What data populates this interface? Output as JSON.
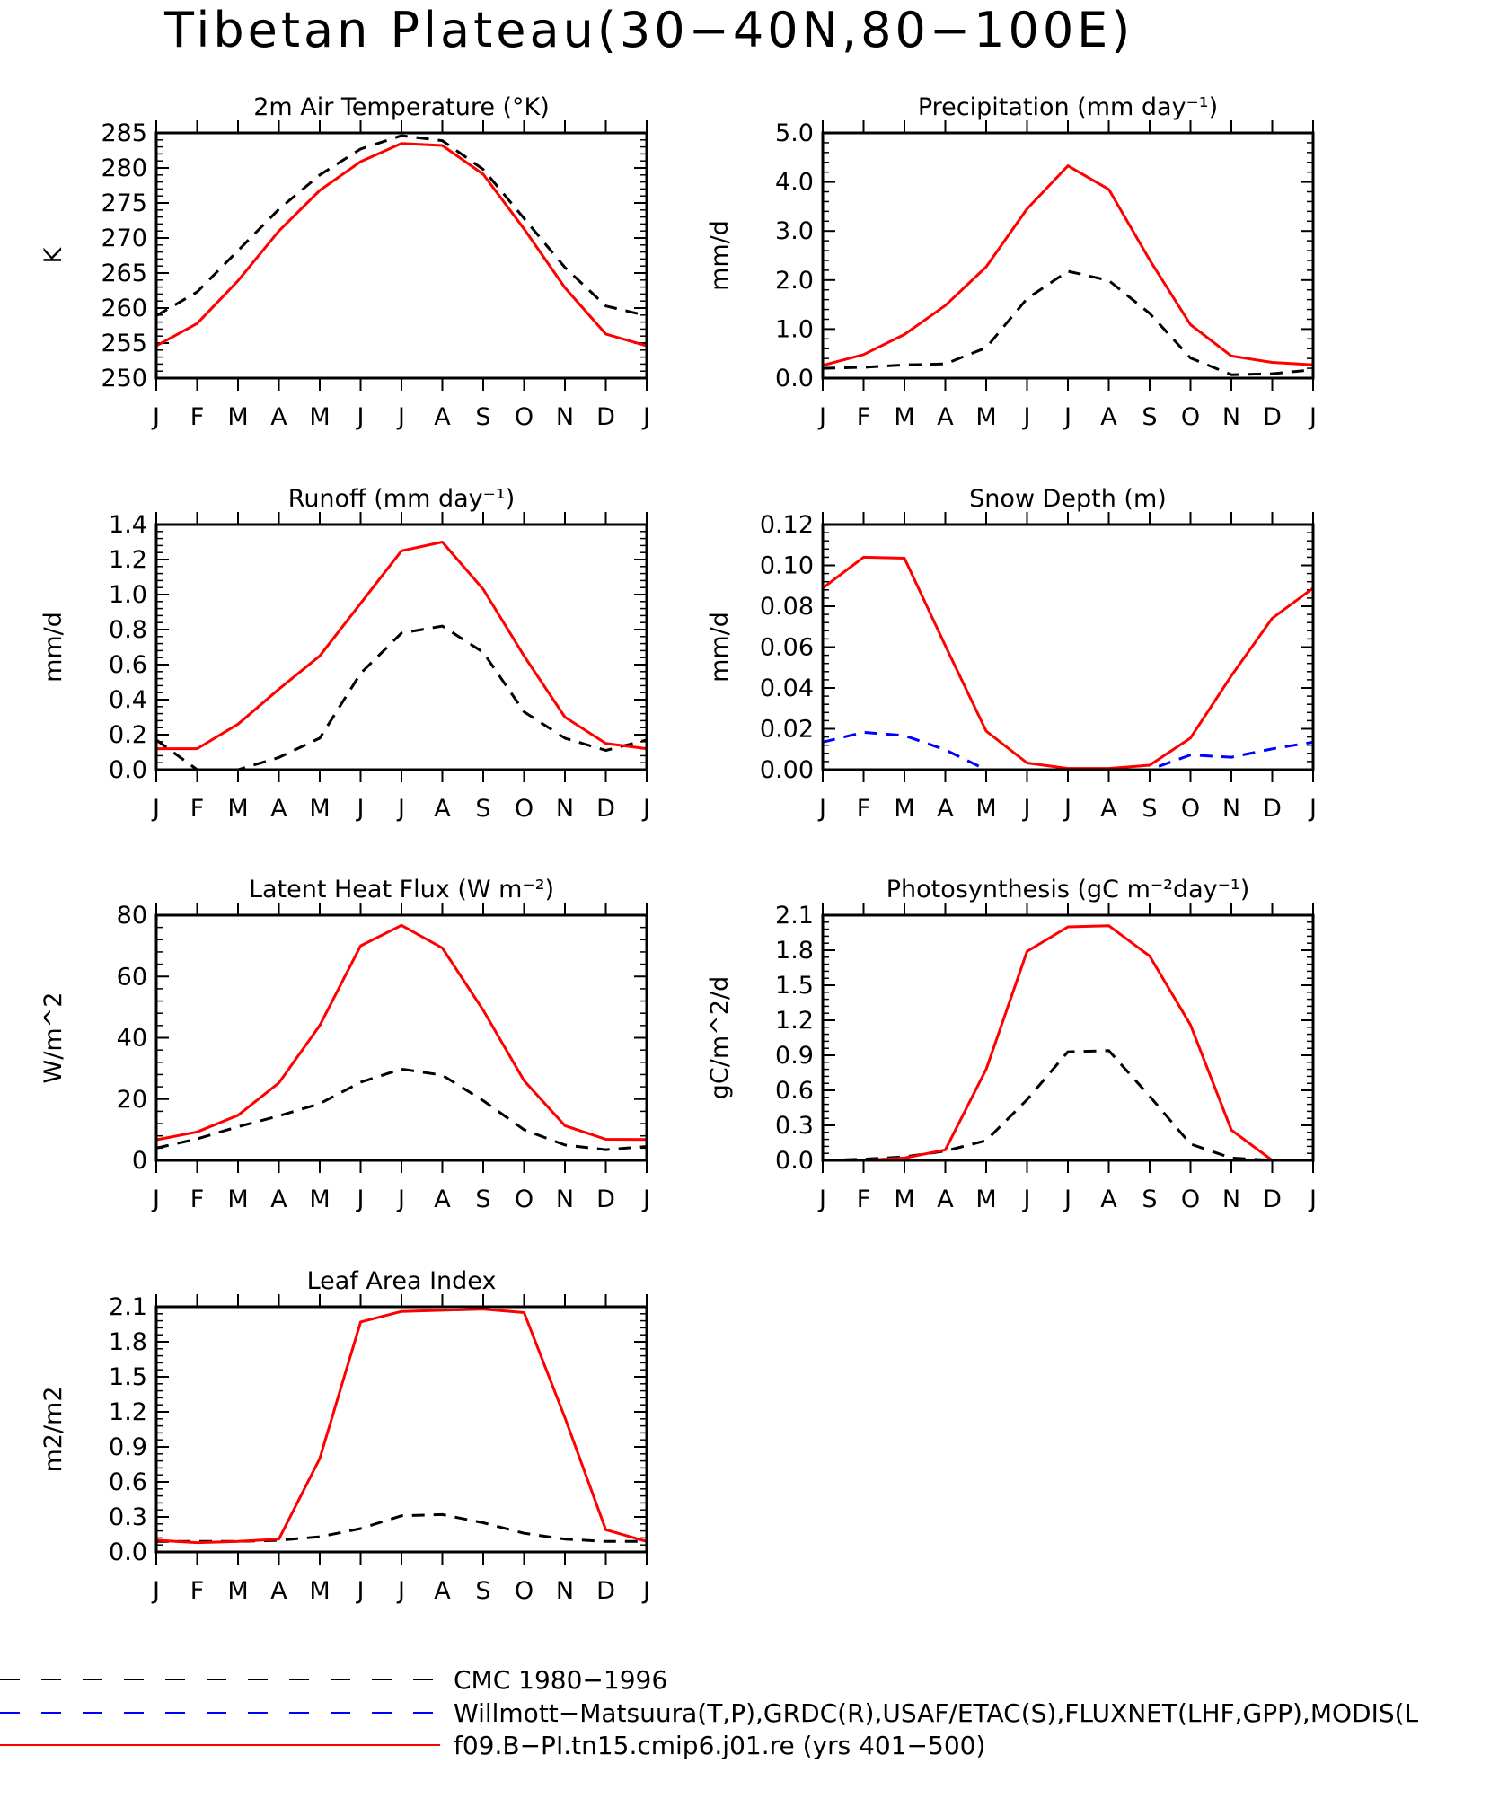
{
  "figure": {
    "title": "Tibetan Plateau(30−40N,80−100E)",
    "months": [
      "J",
      "F",
      "M",
      "A",
      "M",
      "J",
      "J",
      "A",
      "S",
      "O",
      "N",
      "D",
      "J"
    ]
  },
  "legend": [
    {
      "label": "CMC 1980−1996",
      "color": "#000000",
      "style": "long-dash"
    },
    {
      "label": "Willmott−Matsuura(T,P),GRDC(R),USAF/ETAC(S),FLUXNET(LHF,GPP),MODIS(L",
      "color": "#0000ff",
      "style": "long-dash"
    },
    {
      "label": "f09.B−PI.tn15.cmip6.j01.re (yrs 401−500)",
      "color": "#ff0000",
      "style": "solid"
    }
  ],
  "colors": {
    "model": "#ff0000",
    "cmc": "#000000",
    "obs": "#0000ff"
  },
  "chart_data": [
    {
      "type": "line",
      "title": "2m Air Temperature (°K)",
      "ylabel": "K",
      "ylim": [
        250,
        285
      ],
      "yticks": [
        "250",
        "255",
        "260",
        "265",
        "270",
        "275",
        "280",
        "285"
      ],
      "x": [
        "J",
        "F",
        "M",
        "A",
        "M",
        "J",
        "J",
        "A",
        "S",
        "O",
        "N",
        "D",
        "J"
      ],
      "series": [
        {
          "role": "cmc",
          "values": [
            258.9,
            262.3,
            268.2,
            274.1,
            279.0,
            282.7,
            284.6,
            283.9,
            279.8,
            272.8,
            265.8,
            260.3,
            258.9
          ]
        },
        {
          "role": "model",
          "values": [
            254.6,
            257.8,
            263.9,
            271.0,
            276.8,
            280.9,
            283.5,
            283.2,
            279.1,
            271.3,
            262.9,
            256.3,
            254.6
          ]
        }
      ]
    },
    {
      "type": "line",
      "title": "Precipitation (mm day⁻¹)",
      "ylabel": "mm/d",
      "ylim": [
        0,
        5
      ],
      "yticks": [
        "0.0",
        "1.0",
        "2.0",
        "3.0",
        "4.0",
        "5.0"
      ],
      "x": [
        "J",
        "F",
        "M",
        "A",
        "M",
        "J",
        "J",
        "A",
        "S",
        "O",
        "N",
        "D",
        "J"
      ],
      "series": [
        {
          "role": "cmc",
          "values": [
            0.2,
            0.22,
            0.27,
            0.29,
            0.62,
            1.62,
            2.18,
            1.99,
            1.32,
            0.41,
            0.07,
            0.09,
            0.17
          ]
        },
        {
          "role": "model",
          "values": [
            0.26,
            0.48,
            0.89,
            1.48,
            2.27,
            3.45,
            4.33,
            3.85,
            2.41,
            1.09,
            0.45,
            0.32,
            0.27
          ]
        }
      ]
    },
    {
      "type": "line",
      "title": "Runoff (mm day⁻¹)",
      "ylabel": "mm/d",
      "ylim": [
        0,
        1.4
      ],
      "yticks": [
        "0.0",
        "0.2",
        "0.4",
        "0.6",
        "0.8",
        "1.0",
        "1.2",
        "1.4"
      ],
      "x": [
        "J",
        "F",
        "M",
        "A",
        "M",
        "J",
        "J",
        "A",
        "S",
        "O",
        "N",
        "D",
        "J"
      ],
      "series": [
        {
          "role": "cmc",
          "values": [
            0.17,
            0.0,
            0.0,
            0.07,
            0.18,
            0.55,
            0.78,
            0.82,
            0.67,
            0.33,
            0.18,
            0.11,
            0.17
          ]
        },
        {
          "role": "model",
          "values": [
            0.12,
            0.12,
            0.26,
            0.46,
            0.65,
            0.95,
            1.25,
            1.3,
            1.03,
            0.65,
            0.3,
            0.15,
            0.12
          ]
        }
      ]
    },
    {
      "type": "line",
      "title": "Snow Depth (m)",
      "ylabel": "mm/d",
      "ylim": [
        0,
        0.12
      ],
      "yticks": [
        "0.00",
        "0.02",
        "0.04",
        "0.06",
        "0.08",
        "0.10",
        "0.12"
      ],
      "x": [
        "J",
        "F",
        "M",
        "A",
        "M",
        "J",
        "J",
        "A",
        "S",
        "O",
        "N",
        "D",
        "J"
      ],
      "series": [
        {
          "role": "cmc",
          "values": [
            0.0,
            0.0,
            0.0,
            0.0,
            0.0,
            0.0,
            0.0,
            0.0,
            0.0,
            0.0,
            0.0,
            0.0,
            0.0
          ]
        },
        {
          "role": "obs",
          "values": [
            0.0135,
            0.0183,
            0.0167,
            0.0097,
            0.0,
            0.0,
            0.0,
            0.0,
            0.0,
            0.0072,
            0.0061,
            0.0102,
            0.0135
          ]
        },
        {
          "role": "model",
          "values": [
            0.0889,
            0.104,
            0.1035,
            0.0607,
            0.0189,
            0.0033,
            0.0006,
            0.0006,
            0.0022,
            0.0155,
            0.046,
            0.0741,
            0.0889
          ]
        }
      ]
    },
    {
      "type": "line",
      "title": "Latent Heat Flux (W m⁻²)",
      "ylabel": "W/m^2",
      "ylim": [
        0,
        80
      ],
      "yticks": [
        "0",
        "20",
        "40",
        "60",
        "80"
      ],
      "x": [
        "J",
        "F",
        "M",
        "A",
        "M",
        "J",
        "J",
        "A",
        "S",
        "O",
        "N",
        "D",
        "J"
      ],
      "series": [
        {
          "role": "cmc",
          "values": [
            4.0,
            7.0,
            11.0,
            14.5,
            18.5,
            25.5,
            29.8,
            27.8,
            19.5,
            10.0,
            5.0,
            3.5,
            4.5
          ]
        },
        {
          "role": "model",
          "values": [
            6.7,
            9.3,
            14.7,
            25.3,
            44.0,
            70.0,
            76.7,
            69.3,
            49.0,
            26.0,
            11.3,
            6.9,
            6.8
          ]
        }
      ]
    },
    {
      "type": "line",
      "title": "Photosynthesis (gC m⁻²day⁻¹)",
      "ylabel": "gC/m^2/d",
      "ylim": [
        0,
        2.1
      ],
      "yticks": [
        "0.0",
        "0.3",
        "0.6",
        "0.9",
        "1.2",
        "1.5",
        "1.8",
        "2.1"
      ],
      "x": [
        "J",
        "F",
        "M",
        "A",
        "M",
        "J",
        "J",
        "A",
        "S",
        "O",
        "N",
        "D",
        "J"
      ],
      "series": [
        {
          "role": "cmc",
          "values": [
            0.0,
            0.01,
            0.03,
            0.08,
            0.17,
            0.52,
            0.93,
            0.94,
            0.55,
            0.14,
            0.02,
            0.0,
            0.0
          ]
        },
        {
          "role": "model",
          "values": [
            0.0,
            0.0,
            0.02,
            0.09,
            0.78,
            1.79,
            2.0,
            2.01,
            1.75,
            1.16,
            0.26,
            0.0,
            0.0
          ]
        }
      ]
    },
    {
      "type": "line",
      "title": "Leaf Area Index",
      "ylabel": "m2/m2",
      "ylim": [
        0,
        2.1
      ],
      "yticks": [
        "0.0",
        "0.3",
        "0.6",
        "0.9",
        "1.2",
        "1.5",
        "1.8",
        "2.1"
      ],
      "x": [
        "J",
        "F",
        "M",
        "A",
        "M",
        "J",
        "J",
        "A",
        "S",
        "O",
        "N",
        "D",
        "J"
      ],
      "series": [
        {
          "role": "cmc",
          "values": [
            0.09,
            0.09,
            0.09,
            0.1,
            0.13,
            0.2,
            0.31,
            0.32,
            0.25,
            0.16,
            0.11,
            0.09,
            0.09
          ]
        },
        {
          "role": "model",
          "values": [
            0.1,
            0.08,
            0.09,
            0.11,
            0.8,
            1.97,
            2.06,
            2.07,
            2.08,
            2.05,
            1.15,
            0.19,
            0.09
          ]
        }
      ]
    }
  ]
}
